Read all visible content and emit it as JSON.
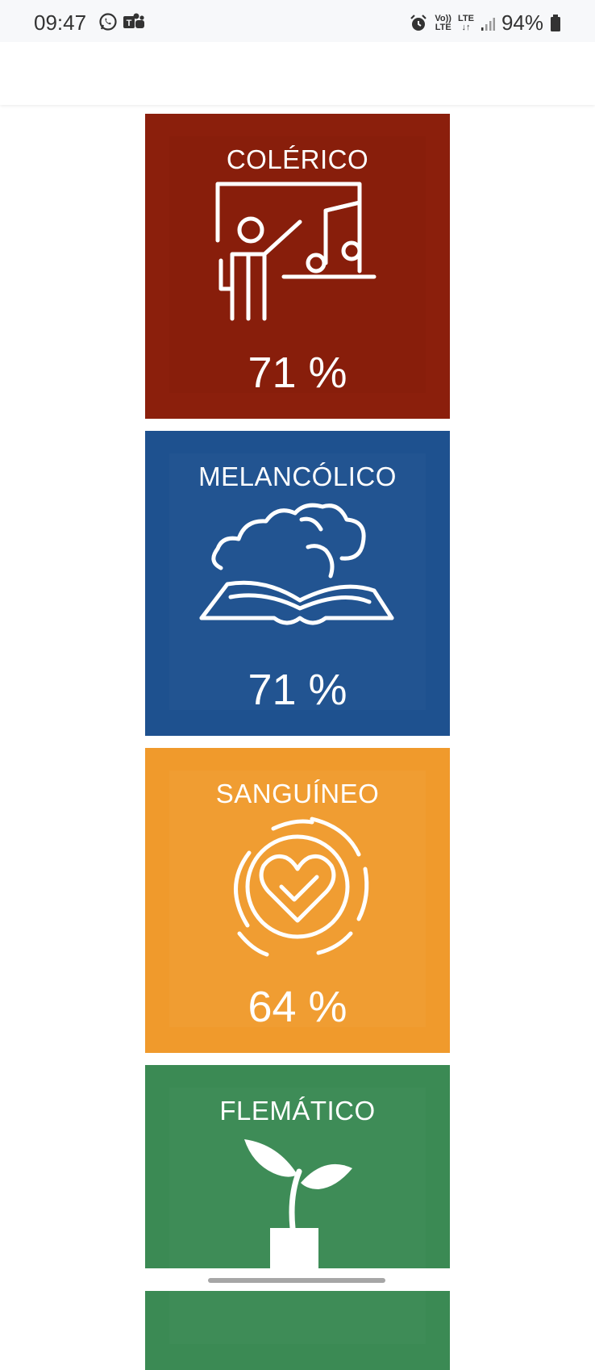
{
  "status_bar": {
    "time": "09:47",
    "battery": "94%",
    "net_top": "Vo))",
    "net_bottom": "LTE",
    "lte": "LTE",
    "icons": [
      "whatsapp-icon",
      "teams-icon",
      "alarm-icon",
      "volte-icon",
      "lte-icon",
      "signal-icon",
      "battery-icon"
    ]
  },
  "cards": [
    {
      "title": "COLÉRICO",
      "percent": "71 %",
      "color": "#8b1f0c",
      "icon": "teacher-music-icon"
    },
    {
      "title": "MELANCÓLICO",
      "percent": "71 %",
      "color": "#1e518f",
      "icon": "cloud-book-icon"
    },
    {
      "title": "SANGUÍNEO",
      "percent": "64 %",
      "color": "#f09a2c",
      "icon": "heart-check-icon"
    },
    {
      "title": "FLEMÁTICO",
      "percent": "",
      "color": "#3b8a54",
      "icon": "sprout-pot-icon"
    }
  ]
}
